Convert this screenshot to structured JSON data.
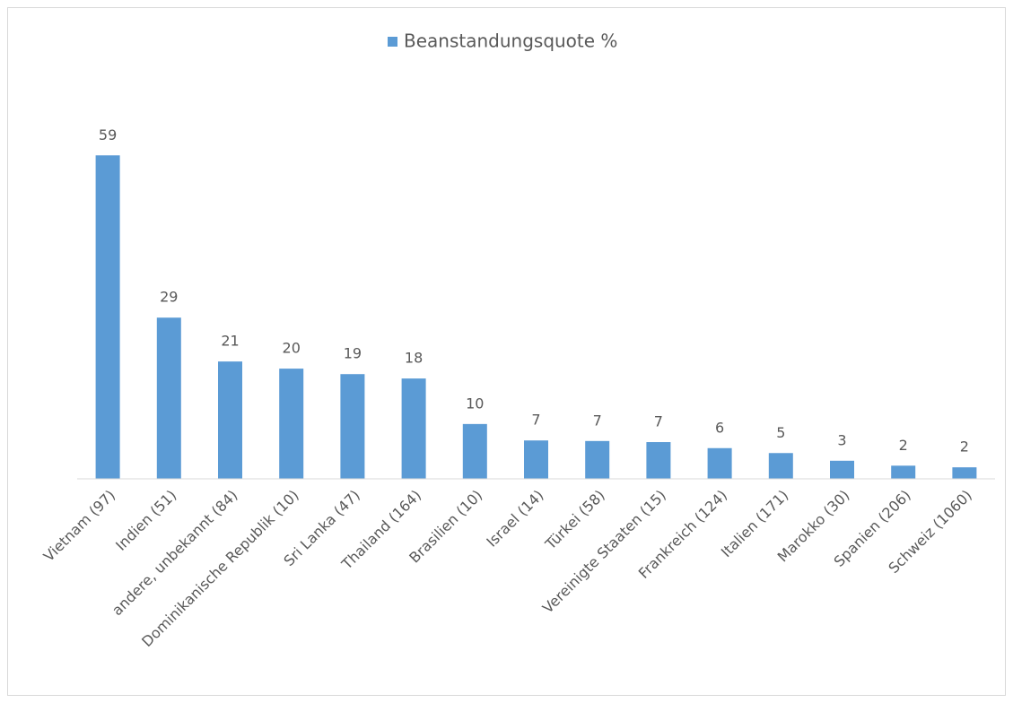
{
  "chart_data": {
    "type": "bar",
    "categories": [
      "Vietnam (97)",
      "Indien (51)",
      "andere, unbekannt (84)",
      "Dominikanische Republik (10)",
      "Sri Lanka (47)",
      "Thailand (164)",
      "Brasilien (10)",
      "Israel (14)",
      "Türkei (58)",
      "Vereinigte Staaten (15)",
      "Frankreich (124)",
      "Italien (171)",
      "Marokko (30)",
      "Spanien (206)",
      "Schweiz (1060)"
    ],
    "series": [
      {
        "name": "Beanstandungsquote %",
        "color": "#5b9bd5",
        "values": [
          59,
          29.4,
          21.4,
          20.1,
          19.1,
          18.3,
          10,
          7,
          6.9,
          6.7,
          5.6,
          4.7,
          3.3,
          2.4,
          2.1
        ],
        "value_labels": [
          "59",
          "29",
          "21",
          "20",
          "19",
          "18",
          "10",
          "7",
          "7",
          "7",
          "6",
          "5",
          "3",
          "2",
          "2"
        ]
      }
    ],
    "ylim": [
      0,
      70
    ],
    "legend": "top"
  }
}
